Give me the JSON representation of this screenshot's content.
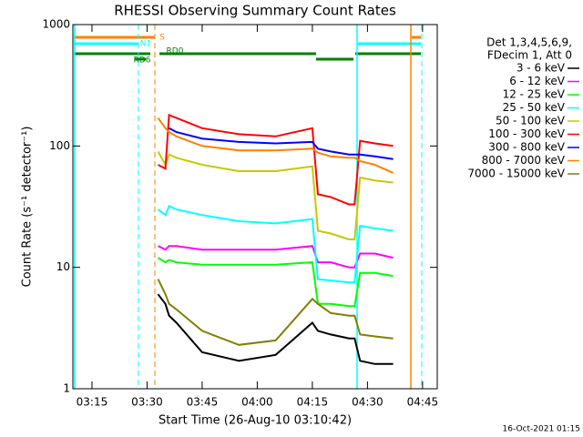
{
  "chart_data": {
    "type": "line",
    "title": "RHESSI Observing Summary Count Rates",
    "xlabel": "Start Time (26-Aug-10 03:10:42)",
    "ylabel": "Count Rate (s⁻¹ detector⁻¹)",
    "legend_header": [
      "Det 1,3,4,5,6,9,",
      "FDecim 1, Att 0"
    ],
    "footer": "16-Oct-2021 01:15",
    "flags": [
      "S",
      "N1",
      "RD0",
      "RD6"
    ],
    "log_y": true,
    "legend": "right",
    "xlim": [
      189.8,
      289
    ],
    "ylim": [
      1,
      1000
    ],
    "yticks": [
      1,
      10,
      100,
      1000
    ],
    "xticks": [
      {
        "value": 195,
        "label": "03:15"
      },
      {
        "value": 210,
        "label": "03:30"
      },
      {
        "value": 225,
        "label": "03:45"
      },
      {
        "value": 240,
        "label": "04:00"
      },
      {
        "value": 255,
        "label": "04:15"
      },
      {
        "value": 270,
        "label": "04:30"
      },
      {
        "value": 285,
        "label": "04:45"
      }
    ],
    "x": [
      213,
      215,
      216,
      218,
      225,
      235,
      245,
      255,
      256.5,
      260,
      265,
      266.5,
      268,
      272,
      277
    ],
    "series": [
      {
        "name": "3 - 6 keV",
        "color": "#000000",
        "values": [
          6,
          5,
          4,
          3.5,
          2,
          1.7,
          1.9,
          3.5,
          3,
          2.8,
          2.6,
          2.6,
          1.7,
          1.6,
          1.6
        ]
      },
      {
        "name": "6 - 12 keV",
        "color": "#ff00ff",
        "values": [
          15,
          14,
          15,
          15,
          14,
          14,
          14,
          15,
          11,
          11,
          10,
          10,
          13,
          13,
          12
        ]
      },
      {
        "name": "12 - 25 keV",
        "color": "#00ff00",
        "values": [
          12,
          11,
          11.5,
          11,
          10.5,
          10.5,
          10.5,
          11,
          5,
          5,
          4.8,
          4.8,
          9,
          9,
          8.5
        ]
      },
      {
        "name": "25 - 50 keV",
        "color": "#00ffff",
        "values": [
          30,
          27,
          32,
          30,
          27,
          24,
          23,
          25,
          8,
          7.8,
          7.5,
          7.5,
          22,
          21,
          20
        ]
      },
      {
        "name": "50 - 100 keV",
        "color": "#c8c800",
        "values": [
          90,
          70,
          85,
          80,
          70,
          62,
          62,
          68,
          20,
          19,
          17,
          17,
          55,
          52,
          50
        ]
      },
      {
        "name": "100 - 300 keV",
        "color": "#ff0000",
        "values": [
          70,
          65,
          180,
          170,
          140,
          125,
          120,
          140,
          40,
          38,
          33,
          33,
          110,
          105,
          100
        ]
      },
      {
        "name": "300 - 800 keV",
        "color": "#0000ff",
        "values": [
          null,
          null,
          140,
          130,
          115,
          108,
          105,
          108,
          95,
          90,
          85,
          85,
          85,
          82,
          78
        ]
      },
      {
        "name": "800 - 7000 keV",
        "color": "#ff8000",
        "values": [
          170,
          140,
          130,
          120,
          100,
          92,
          92,
          95,
          88,
          82,
          80,
          80,
          75,
          70,
          60
        ]
      },
      {
        "name": "7000 - 15000 keV",
        "color": "#808000",
        "values": [
          8,
          6,
          5,
          4.5,
          3,
          2.3,
          2.5,
          5.5,
          5,
          4.2,
          4,
          4,
          2.8,
          2.7,
          2.6
        ]
      }
    ]
  }
}
